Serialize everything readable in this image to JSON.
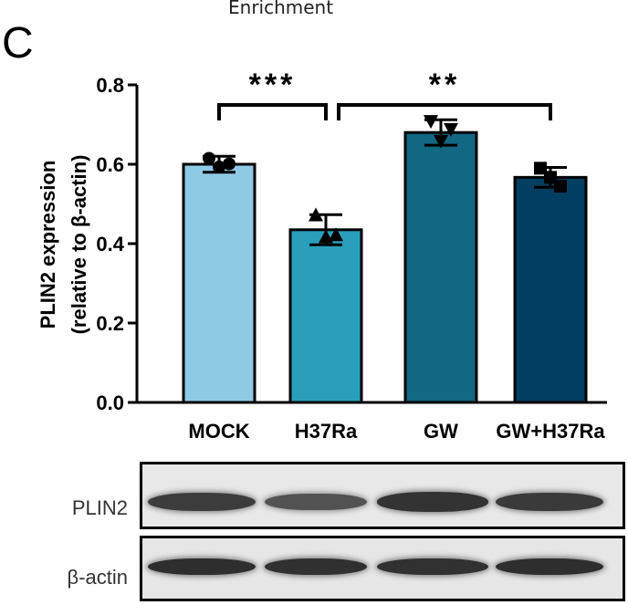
{
  "top_caption": "Enrichment",
  "panel_letter": "C",
  "chart_data": {
    "type": "bar",
    "ylabel_line1": "PLIN2 expression",
    "ylabel_line2": "(relative to β-actin)",
    "ylim": [
      0,
      0.8
    ],
    "yticks": [
      "0.0",
      "0.2",
      "0.4",
      "0.6",
      "0.8"
    ],
    "ytick_values": [
      0,
      0.2,
      0.4,
      0.6,
      0.8
    ],
    "categories": [
      "MOCK",
      "H37Ra",
      "GW",
      "GW+H37Ra"
    ],
    "values": [
      0.6,
      0.435,
      0.68,
      0.567
    ],
    "errors": [
      0.02,
      0.038,
      0.032,
      0.025
    ],
    "colors": [
      "#8ecae6",
      "#2a9fbc",
      "#126782",
      "#023e5f"
    ],
    "markers": [
      "circle",
      "triangle-up",
      "triangle-down",
      "square"
    ],
    "points": [
      [
        0.615,
        0.593,
        0.601
      ],
      [
        0.47,
        0.415,
        0.42
      ],
      [
        0.71,
        0.66,
        0.69
      ],
      [
        0.59,
        0.567,
        0.545
      ]
    ],
    "significance": [
      {
        "from": 0,
        "to": 1,
        "label": "***"
      },
      {
        "from": 1,
        "to": 3,
        "label": "**"
      }
    ],
    "grid": false
  },
  "blot": {
    "rows": [
      {
        "label": "PLIN2",
        "intensity": [
          0.82,
          0.62,
          0.9,
          0.84
        ]
      },
      {
        "label": "β-actin",
        "intensity": [
          0.95,
          0.93,
          0.92,
          0.95
        ]
      }
    ]
  }
}
